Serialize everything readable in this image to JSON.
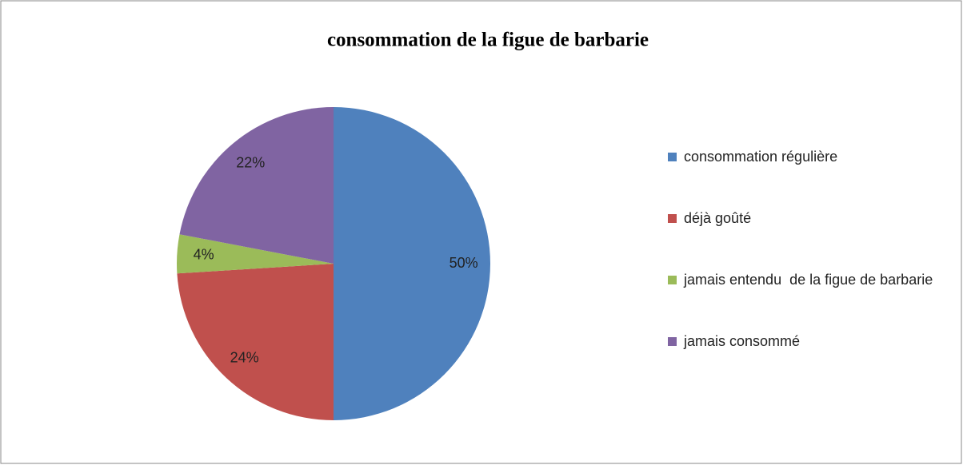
{
  "chart_data": {
    "type": "pie",
    "title": "consommation de la figue de barbarie",
    "categories": [
      "consommation régulière",
      "déjà goûté",
      "jamais entendu  de la figue de barbarie",
      "jamais consommé"
    ],
    "values": [
      50,
      24,
      4,
      22
    ],
    "value_labels": [
      "50%",
      "24%",
      "4%",
      "22%"
    ],
    "colors": [
      "#4f81bd",
      "#c0504d",
      "#9bbb59",
      "#8064a2"
    ],
    "legend": "right"
  }
}
